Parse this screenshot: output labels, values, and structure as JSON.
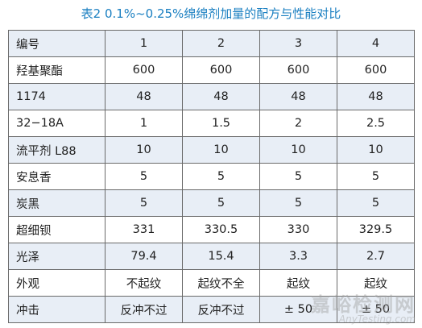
{
  "title": "表2 0.1%~0.25%绵绵剂加量的配方与性能对比",
  "table": {
    "rows": [
      [
        "编号",
        "1",
        "2",
        "3",
        "4"
      ],
      [
        "羟基聚酯",
        "600",
        "600",
        "600",
        "600"
      ],
      [
        "1174",
        "48",
        "48",
        "48",
        "48"
      ],
      [
        "32−18A",
        "1",
        "1.5",
        "2",
        "2.5"
      ],
      [
        "流平剂 L88",
        "10",
        "10",
        "10",
        "10"
      ],
      [
        "安息香",
        "5",
        "5",
        "5",
        "5"
      ],
      [
        "炭黑",
        "5",
        "5",
        "5",
        "5"
      ],
      [
        "超细钡",
        "331",
        "330.5",
        "330",
        "329.5"
      ],
      [
        "光泽",
        "79.4",
        "15.4",
        "3.3",
        "2.7"
      ],
      [
        "外观",
        "不起纹",
        "起纹不全",
        "起纹",
        "起纹"
      ],
      [
        "冲击",
        "反冲不过",
        "反冲不过",
        "± 50",
        "± 50"
      ]
    ]
  },
  "watermark": {
    "cn": "嘉峪检测网",
    "en": "AnyTesting.com"
  },
  "colors": {
    "title": "#1a7fc1",
    "band": "#e8eef6",
    "border": "#6a6a6a"
  }
}
